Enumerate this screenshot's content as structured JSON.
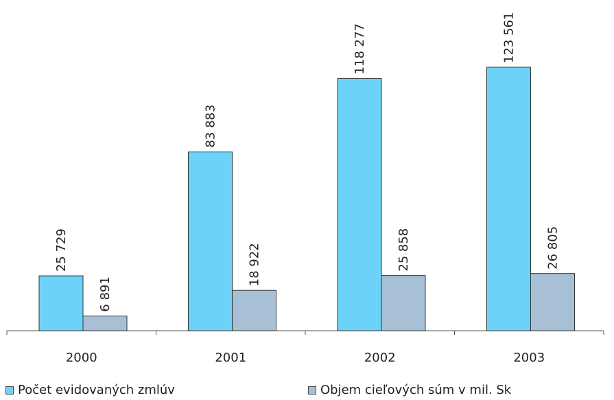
{
  "chart_data": {
    "type": "bar",
    "categories": [
      "2000",
      "2001",
      "2002",
      "2003"
    ],
    "series": [
      {
        "name": "Počet evidovaných zmlúv",
        "values": [
          25729,
          83883,
          118277,
          123561
        ],
        "labels": [
          "25 729",
          "83 883",
          "118 277",
          "123 561"
        ],
        "color": "#6dd2f7"
      },
      {
        "name": "Objem cieľových súm v mil. Sk",
        "values": [
          6891,
          18922,
          25858,
          26805
        ],
        "labels": [
          "6 891",
          "18 922",
          "25 858",
          "26 805"
        ],
        "color": "#a8c0d6"
      }
    ],
    "legend_position": "bottom",
    "grid": false
  }
}
